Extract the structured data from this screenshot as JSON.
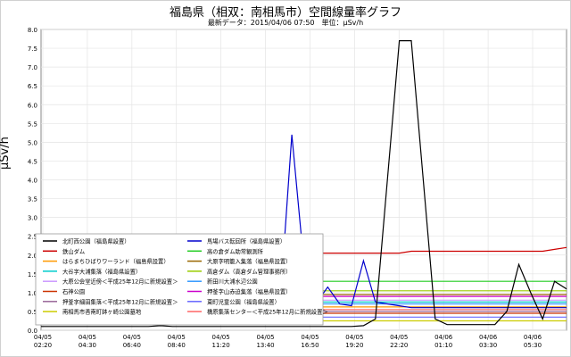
{
  "chart_data": {
    "type": "line",
    "title": "福島県（相双：南相馬市）空間線量率グラフ",
    "subtitle": "最新データ：2015/04/06 07:50　単位：μSv/h",
    "ylabel": "μSv/h",
    "xlabel": "",
    "ylim": [
      0,
      8
    ],
    "y_ticks": [
      "0.0",
      "0.5",
      "1.0",
      "1.5",
      "2.0",
      "2.5",
      "3.0",
      "3.5",
      "4.0",
      "4.5",
      "5.0",
      "5.5",
      "6.0",
      "6.5",
      "7.0",
      "7.5",
      "8.0"
    ],
    "x_ticks": [
      {
        "date": "04/05",
        "time": "02:20"
      },
      {
        "date": "04/05",
        "time": "04:30"
      },
      {
        "date": "04/05",
        "time": "06:40"
      },
      {
        "date": "04/05",
        "time": "08:40"
      },
      {
        "date": "04/05",
        "time": "11:20"
      },
      {
        "date": "04/05",
        "time": "13:40"
      },
      {
        "date": "04/05",
        "time": "16:50"
      },
      {
        "date": "04/05",
        "time": "19:20"
      },
      {
        "date": "04/05",
        "time": "22:20"
      },
      {
        "date": "04/06",
        "time": "01:10"
      },
      {
        "date": "04/06",
        "time": "03:30"
      },
      {
        "date": "04/06",
        "time": "05:30"
      }
    ],
    "grid": true,
    "legend_position": "lower-left",
    "series": [
      {
        "name": "北町西公園（福島県設置）",
        "color": "#000000",
        "values": [
          0.1,
          0.1,
          0.1,
          0.1,
          0.1,
          0.1,
          0.1,
          0.1,
          0.1,
          0.1,
          0.12,
          0.1,
          0.1,
          0.1,
          0.1,
          0.1,
          0.1,
          0.1,
          0.1,
          0.1,
          0.1,
          0.1,
          0.1,
          0.1,
          0.1,
          0.1,
          0.1,
          0.12,
          0.3,
          4.0,
          7.7,
          7.7,
          4.0,
          0.3,
          0.15,
          0.15,
          0.15,
          0.15,
          0.15,
          0.5,
          1.75,
          1.0,
          0.3,
          1.3,
          1.1
        ]
      },
      {
        "name": "馬場バス転回所（福島県設置）",
        "color": "#0000cc",
        "values": [
          0.55,
          0.55,
          0.55,
          0.55,
          0.55,
          0.55,
          0.55,
          0.55,
          0.55,
          0.55,
          0.55,
          0.55,
          0.55,
          0.55,
          0.55,
          0.55,
          0.55,
          0.55,
          0.55,
          1.6,
          0.65,
          5.2,
          1.8,
          0.7,
          1.15,
          0.7,
          0.65,
          1.85,
          0.75,
          0.7,
          0.65,
          0.6,
          0.6,
          0.6,
          0.6,
          0.6,
          0.6,
          0.6,
          0.6,
          0.6,
          0.6,
          0.6,
          0.6,
          0.6,
          0.6
        ]
      },
      {
        "name": "鉄山ダム",
        "color": "#cc0000",
        "values": [
          2.05,
          2.05,
          2.05,
          2.05,
          2.05,
          2.05,
          2.05,
          2.05,
          2.05,
          2.05,
          2.05,
          2.05,
          2.05,
          2.05,
          2.05,
          2.05,
          2.05,
          2.05,
          2.05,
          2.05,
          2.05,
          2.05,
          2.05,
          2.05,
          2.05,
          2.05,
          2.05,
          2.05,
          2.05,
          2.05,
          2.05,
          2.1,
          2.1,
          2.1,
          2.1,
          2.1,
          2.1,
          2.1,
          2.1,
          2.1,
          2.1,
          2.1,
          2.1,
          2.15,
          2.2
        ]
      },
      {
        "name": "高の倉ダム助常観測所",
        "color": "#22cc22",
        "values": [
          1.3,
          1.3,
          1.3,
          1.3,
          1.3,
          1.3,
          1.3,
          1.3,
          1.3,
          1.3,
          1.3,
          1.3,
          1.3,
          1.3,
          1.3,
          1.3,
          1.3,
          1.3,
          1.3,
          1.3,
          1.3,
          1.3,
          1.3,
          1.3,
          1.3,
          1.3,
          1.3,
          1.3,
          1.3,
          1.3,
          1.3,
          1.3,
          1.3,
          1.3,
          1.3,
          1.3,
          1.3,
          1.3,
          1.3,
          1.3,
          1.3,
          1.3,
          1.3,
          1.3,
          1.3
        ]
      },
      {
        "name": "はらまちひばりワーランド（福島県設置）",
        "color": "#ff9900",
        "values": [
          0.62,
          0.62,
          0.62,
          0.62,
          0.62,
          0.62,
          0.62,
          0.62,
          0.62,
          0.62,
          0.62,
          0.62,
          0.62,
          0.62,
          0.62,
          0.62,
          0.62,
          0.62,
          0.62,
          0.62,
          0.62,
          0.62,
          0.62,
          0.62,
          0.62,
          0.62,
          0.62,
          0.62,
          0.62,
          0.62,
          0.62,
          0.62,
          0.62,
          0.62,
          0.62,
          0.62,
          0.62,
          0.62,
          0.62,
          0.62,
          0.62,
          0.62,
          0.62,
          0.62,
          0.62
        ]
      },
      {
        "name": "大原字明籠入集落（福島県設置）",
        "color": "#996600",
        "values": [
          0.95,
          0.95,
          0.95,
          0.95,
          0.95,
          0.95,
          0.95,
          0.95,
          0.95,
          0.95,
          0.95,
          0.95,
          0.95,
          0.95,
          0.95,
          0.95,
          0.95,
          0.95,
          0.95,
          0.95,
          0.95,
          0.95,
          0.95,
          0.95,
          0.95,
          0.95,
          0.95,
          0.95,
          0.95,
          0.95,
          0.95,
          0.95,
          0.95,
          0.95,
          0.95,
          0.95,
          0.95,
          0.95,
          0.95,
          0.95,
          0.95,
          0.95,
          0.95,
          0.95,
          0.95
        ]
      },
      {
        "name": "大谷字大浦集落（福島県設置）",
        "color": "#00cccc",
        "values": [
          0.75,
          0.75,
          0.75,
          0.75,
          0.75,
          0.75,
          0.75,
          0.75,
          0.75,
          0.75,
          0.75,
          0.75,
          0.75,
          0.75,
          0.75,
          0.75,
          0.75,
          0.75,
          0.75,
          0.75,
          0.75,
          0.75,
          0.75,
          0.75,
          0.75,
          0.75,
          0.75,
          0.75,
          0.75,
          0.75,
          0.75,
          0.75,
          0.75,
          0.75,
          0.75,
          0.75,
          0.75,
          0.75,
          0.75,
          0.75,
          0.75,
          0.75,
          0.75,
          0.75,
          0.75
        ]
      },
      {
        "name": "高倉ダム（高倉ダム管理事務所）",
        "color": "#99cc00",
        "values": [
          1.05,
          1.05,
          1.05,
          1.05,
          1.05,
          1.05,
          1.05,
          1.05,
          1.05,
          1.05,
          1.05,
          1.05,
          1.05,
          1.05,
          1.05,
          1.05,
          1.05,
          1.05,
          1.05,
          1.05,
          1.05,
          1.05,
          1.05,
          1.05,
          1.05,
          1.05,
          1.05,
          1.05,
          1.05,
          1.05,
          1.05,
          1.05,
          1.05,
          1.05,
          1.05,
          1.05,
          1.05,
          1.05,
          1.05,
          1.05,
          1.05,
          1.05,
          1.05,
          1.05,
          1.05
        ]
      },
      {
        "name": "大原公会堂近傍＜平成25年12月に新規設置＞",
        "color": "#cc99ff",
        "values": [
          0.8,
          0.8,
          0.8,
          0.8,
          0.8,
          0.8,
          0.8,
          0.8,
          0.8,
          0.8,
          0.8,
          0.8,
          0.8,
          0.8,
          0.8,
          0.8,
          0.8,
          0.8,
          0.8,
          0.8,
          0.8,
          0.8,
          0.8,
          0.8,
          0.8,
          0.8,
          0.8,
          0.8,
          0.8,
          0.8,
          0.8,
          0.8,
          0.8,
          0.8,
          0.8,
          0.8,
          0.8,
          0.8,
          0.8,
          0.8,
          0.8,
          0.8,
          0.8,
          0.8,
          0.8
        ]
      },
      {
        "name": "新田川大浦水辺公園",
        "color": "#3399ff",
        "values": [
          0.7,
          0.7,
          0.7,
          0.7,
          0.7,
          0.7,
          0.7,
          0.7,
          0.7,
          0.7,
          0.7,
          0.7,
          0.7,
          0.7,
          0.7,
          0.7,
          0.7,
          0.7,
          0.7,
          0.7,
          0.7,
          0.7,
          0.7,
          0.7,
          0.7,
          0.7,
          0.7,
          0.7,
          0.7,
          0.7,
          0.7,
          0.7,
          0.7,
          0.7,
          0.7,
          0.7,
          0.7,
          0.7,
          0.7,
          0.7,
          0.7,
          0.7,
          0.7,
          0.7,
          0.7
        ]
      },
      {
        "name": "石神公園",
        "color": "#cc3300",
        "values": [
          0.45,
          0.45,
          0.45,
          0.45,
          0.45,
          0.45,
          0.45,
          0.45,
          0.45,
          0.45,
          0.45,
          0.45,
          0.45,
          0.45,
          0.45,
          0.45,
          0.45,
          0.45,
          0.45,
          0.45,
          0.45,
          0.45,
          0.45,
          0.45,
          0.45,
          0.45,
          0.45,
          0.45,
          0.45,
          0.45,
          0.45,
          0.45,
          0.45,
          0.45,
          0.45,
          0.45,
          0.45,
          0.45,
          0.45,
          0.45,
          0.45,
          0.45,
          0.45,
          0.45,
          0.45
        ]
      },
      {
        "name": "押釜字山赤迫集落（福島県設置）",
        "color": "#cc00cc",
        "values": [
          0.9,
          0.9,
          0.9,
          0.9,
          0.9,
          0.9,
          0.9,
          0.9,
          0.9,
          0.9,
          0.9,
          0.9,
          0.9,
          0.9,
          0.9,
          0.9,
          0.9,
          0.9,
          0.9,
          0.9,
          0.9,
          0.9,
          0.9,
          0.9,
          0.9,
          0.9,
          0.9,
          0.9,
          0.9,
          0.9,
          0.9,
          0.9,
          0.9,
          0.9,
          0.9,
          0.9,
          0.9,
          0.9,
          0.9,
          0.9,
          0.9,
          0.9,
          0.9,
          0.9,
          0.9
        ]
      },
      {
        "name": "押釜字細田集落＜平成25年12月に新規設置＞",
        "color": "#996699",
        "values": [
          0.5,
          0.5,
          0.5,
          0.5,
          0.5,
          0.5,
          0.5,
          0.5,
          0.5,
          0.5,
          0.5,
          0.5,
          0.5,
          0.5,
          0.5,
          0.5,
          0.5,
          0.5,
          0.5,
          0.5,
          0.5,
          0.5,
          0.5,
          0.5,
          0.5,
          0.5,
          0.5,
          0.5,
          0.5,
          0.5,
          0.5,
          0.5,
          0.5,
          0.5,
          0.5,
          0.5,
          0.5,
          0.5,
          0.5,
          0.5,
          0.5,
          0.5,
          0.5,
          0.5,
          0.5
        ]
      },
      {
        "name": "東町児童公園（福島県設置）",
        "color": "#6666ff",
        "values": [
          0.35,
          0.35,
          0.35,
          0.35,
          0.35,
          0.35,
          0.35,
          0.35,
          0.35,
          0.35,
          0.35,
          0.35,
          0.35,
          0.35,
          0.35,
          0.35,
          0.35,
          0.35,
          0.35,
          0.35,
          0.35,
          0.35,
          0.35,
          0.35,
          0.35,
          0.35,
          0.35,
          0.35,
          0.35,
          0.35,
          0.35,
          0.35,
          0.35,
          0.35,
          0.35,
          0.35,
          0.35,
          0.35,
          0.35,
          0.35,
          0.35,
          0.35,
          0.35,
          0.35,
          0.35
        ]
      },
      {
        "name": "南相馬市香南町鉢ヶ崎公園墓地",
        "color": "#cccc00",
        "values": [
          0.25,
          0.25,
          0.25,
          0.25,
          0.25,
          0.25,
          0.25,
          0.25,
          0.25,
          0.25,
          0.25,
          0.25,
          0.25,
          0.25,
          0.25,
          0.25,
          0.25,
          0.25,
          0.25,
          0.25,
          0.25,
          0.25,
          0.25,
          0.25,
          0.25,
          0.25,
          0.25,
          0.25,
          0.25,
          0.25,
          0.25,
          0.25,
          0.25,
          0.25,
          0.25,
          0.25,
          0.25,
          0.25,
          0.25,
          0.25,
          0.25,
          0.25,
          0.25,
          0.25,
          0.25
        ]
      },
      {
        "name": "橋原集落センター＜平成25年12月に新規設置＞",
        "color": "#ff6666",
        "values": [
          0.55,
          0.55,
          0.55,
          0.55,
          0.55,
          0.55,
          0.55,
          0.55,
          0.55,
          0.55,
          0.55,
          0.55,
          0.55,
          0.55,
          0.55,
          0.55,
          0.55,
          0.55,
          0.55,
          0.55,
          0.55,
          0.55,
          0.55,
          0.55,
          0.55,
          0.55,
          0.55,
          0.55,
          0.55,
          0.55,
          0.55,
          0.55,
          0.55,
          0.55,
          0.55,
          0.55,
          0.55,
          0.55,
          0.55,
          0.55,
          0.55,
          0.55,
          0.55,
          0.55,
          0.55
        ]
      }
    ]
  }
}
